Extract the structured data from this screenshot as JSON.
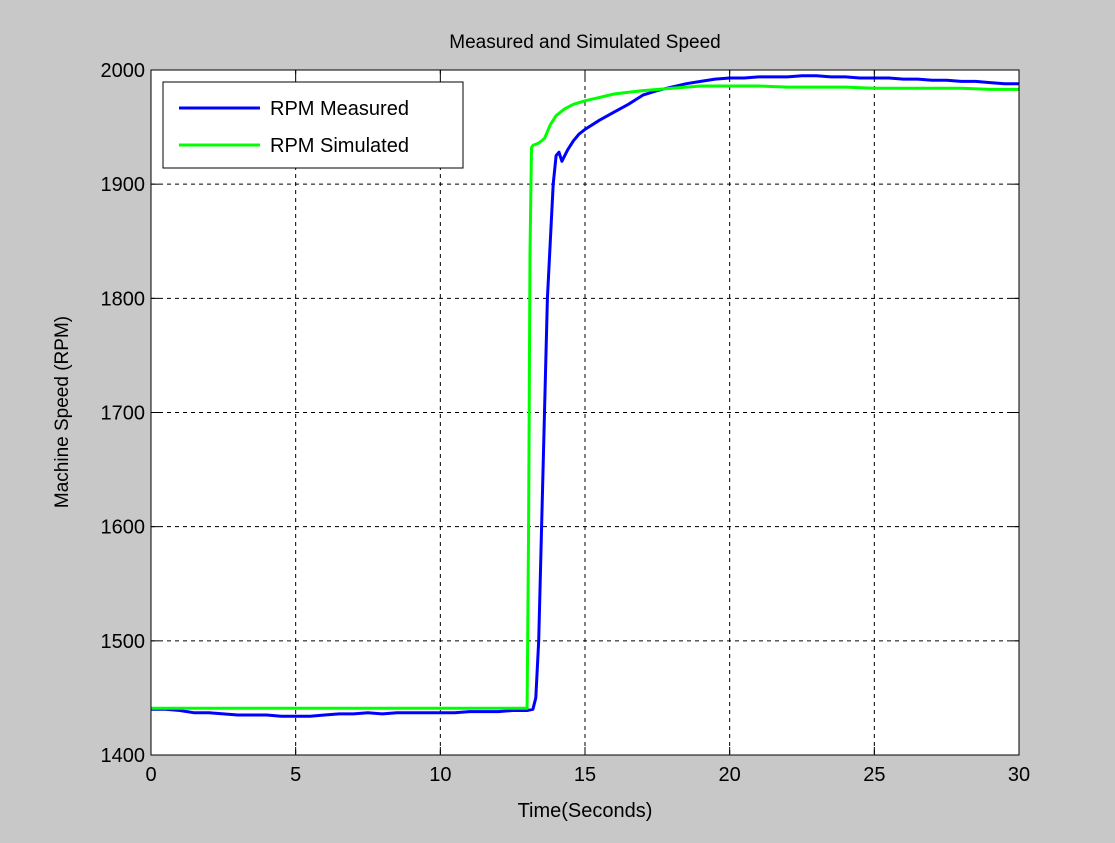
{
  "chart_data": {
    "type": "line",
    "title": "Measured and Simulated Speed",
    "xlabel": "Time(Seconds)",
    "ylabel": "Machine Speed (RPM)",
    "xlim": [
      0,
      30
    ],
    "ylim": [
      1400,
      2000
    ],
    "xticks": [
      0,
      5,
      10,
      15,
      20,
      25,
      30
    ],
    "yticks": [
      1400,
      1500,
      1600,
      1700,
      1800,
      1900,
      2000
    ],
    "grid": true,
    "legend_position": "top-left",
    "background_color": "#c8c8c8",
    "plot_background_color": "#ffffff",
    "series": [
      {
        "name": "RPM Measured",
        "color": "#0000ff",
        "x": [
          0.0,
          0.5,
          1.0,
          1.5,
          2.0,
          2.5,
          3.0,
          3.5,
          4.0,
          4.5,
          5.0,
          5.5,
          6.0,
          6.5,
          7.0,
          7.5,
          8.0,
          8.5,
          9.0,
          9.5,
          10.0,
          10.5,
          11.0,
          11.5,
          12.0,
          12.5,
          13.0,
          13.2,
          13.3,
          13.4,
          13.5,
          13.6,
          13.7,
          13.8,
          13.9,
          14.0,
          14.1,
          14.2,
          14.4,
          14.6,
          14.8,
          15.0,
          15.5,
          16.0,
          16.5,
          17.0,
          17.5,
          18.0,
          18.5,
          19.0,
          19.5,
          20.0,
          20.5,
          21.0,
          21.5,
          22.0,
          22.5,
          23.0,
          23.5,
          24.0,
          24.5,
          25.0,
          25.5,
          26.0,
          26.5,
          27.0,
          27.5,
          28.0,
          28.5,
          29.0,
          29.5,
          30.0
        ],
        "y": [
          1440,
          1440,
          1439,
          1437,
          1437,
          1436,
          1435,
          1435,
          1435,
          1434,
          1434,
          1434,
          1435,
          1436,
          1436,
          1437,
          1436,
          1437,
          1437,
          1437,
          1437,
          1437,
          1438,
          1438,
          1438,
          1439,
          1439,
          1440,
          1450,
          1500,
          1600,
          1700,
          1800,
          1850,
          1900,
          1925,
          1928,
          1920,
          1930,
          1938,
          1944,
          1948,
          1956,
          1963,
          1970,
          1978,
          1982,
          1985,
          1988,
          1990,
          1992,
          1993,
          1993,
          1994,
          1994,
          1994,
          1995,
          1995,
          1994,
          1994,
          1993,
          1993,
          1993,
          1992,
          1992,
          1991,
          1991,
          1990,
          1990,
          1989,
          1988,
          1988
        ]
      },
      {
        "name": "RPM Simulated",
        "color": "#00ff00",
        "x": [
          0.0,
          1.0,
          2.0,
          4.0,
          6.0,
          8.0,
          10.0,
          12.0,
          13.0,
          13.05,
          13.1,
          13.15,
          13.2,
          13.4,
          13.6,
          13.8,
          14.0,
          14.3,
          14.6,
          15.0,
          15.5,
          16.0,
          17.0,
          18.0,
          19.0,
          20.0,
          21.0,
          22.0,
          23.0,
          24.0,
          25.0,
          26.0,
          27.0,
          28.0,
          29.0,
          30.0
        ],
        "y": [
          1441,
          1441,
          1441,
          1441,
          1441,
          1441,
          1441,
          1441,
          1441,
          1600,
          1840,
          1932,
          1934,
          1936,
          1940,
          1952,
          1960,
          1966,
          1970,
          1973,
          1976,
          1979,
          1982,
          1984,
          1986,
          1986,
          1986,
          1985,
          1985,
          1985,
          1984,
          1984,
          1984,
          1984,
          1983,
          1983
        ]
      }
    ]
  }
}
